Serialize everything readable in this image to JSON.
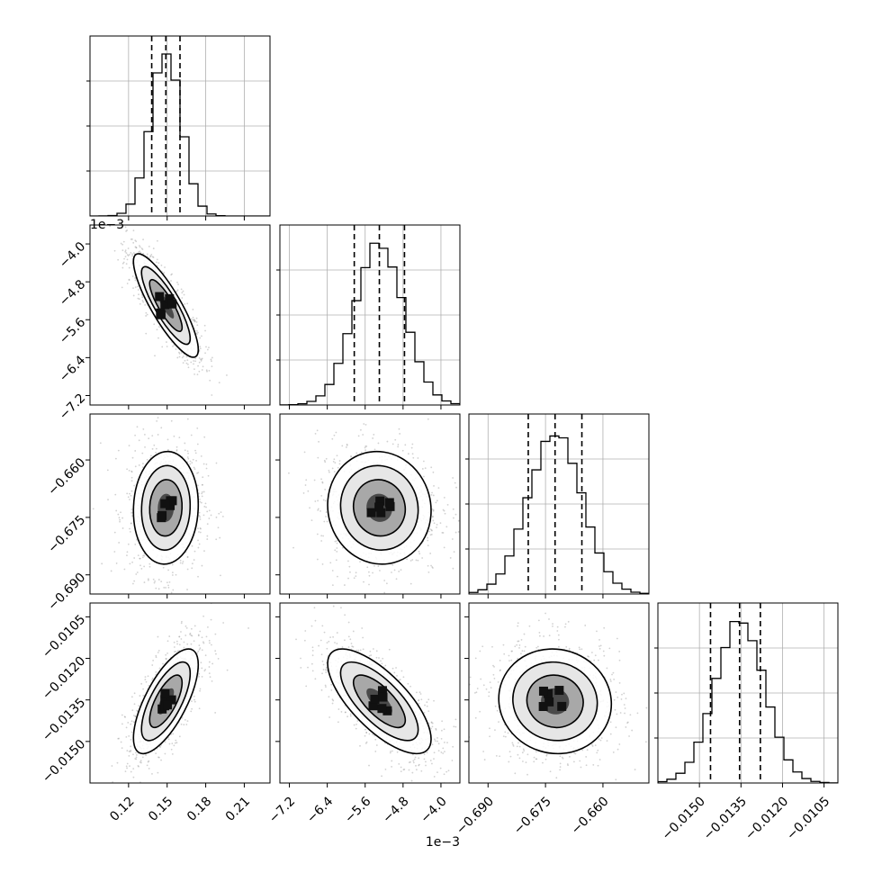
{
  "chart_data": {
    "type": "corner",
    "grid": true,
    "quantile_lines": "dashed",
    "parameters": [
      {
        "key": "p0",
        "range": [
          0.09,
          0.23
        ],
        "ticks": [
          "0.12",
          "0.15",
          "0.18",
          "0.21"
        ],
        "tick_values": [
          0.12,
          0.15,
          0.18,
          0.21
        ],
        "quantiles": [
          0.138,
          0.149,
          0.16
        ],
        "mean": 0.149,
        "sd": 0.012,
        "offset": ""
      },
      {
        "key": "p1",
        "range": [
          -7.4,
          -3.6
        ],
        "ticks": [
          "−7.2",
          "−6.4",
          "−5.6",
          "−4.8",
          "−4.0"
        ],
        "tick_values": [
          -7.2,
          -6.4,
          -5.6,
          -4.8,
          -4.0
        ],
        "quantiles": [
          -5.83,
          -5.3,
          -4.77
        ],
        "mean": -5.3,
        "sd": 0.52,
        "offset": "1e−3"
      },
      {
        "key": "p2",
        "range": [
          -0.695,
          -0.648
        ],
        "ticks": [
          "−0.690",
          "−0.675",
          "−0.660"
        ],
        "tick_values": [
          -0.69,
          -0.675,
          -0.66
        ],
        "quantiles": [
          -0.6795,
          -0.6725,
          -0.6655
        ],
        "mean": -0.6725,
        "sd": 0.007,
        "offset": ""
      },
      {
        "key": "p3",
        "range": [
          -0.0165,
          -0.01
        ],
        "ticks": [
          "−0.0150",
          "−0.0135",
          "−0.0120",
          "−0.0105"
        ],
        "tick_values": [
          -0.015,
          -0.0135,
          -0.012,
          -0.0105
        ],
        "quantiles": [
          -0.0146,
          -0.01355,
          -0.0128
        ],
        "mean": -0.01355,
        "sd": 0.0009,
        "offset": ""
      }
    ],
    "correlations": [
      {
        "pair": [
          0,
          1
        ],
        "r": -0.85
      },
      {
        "pair": [
          0,
          2
        ],
        "r": 0.05
      },
      {
        "pair": [
          1,
          2
        ],
        "r": -0.05
      },
      {
        "pair": [
          0,
          3
        ],
        "r": 0.7
      },
      {
        "pair": [
          1,
          3
        ],
        "r": -0.72
      },
      {
        "pair": [
          2,
          3
        ],
        "r": -0.05
      }
    ],
    "contour_levels_sigma": [
      0.5,
      1.0,
      1.5,
      2.0
    ]
  }
}
